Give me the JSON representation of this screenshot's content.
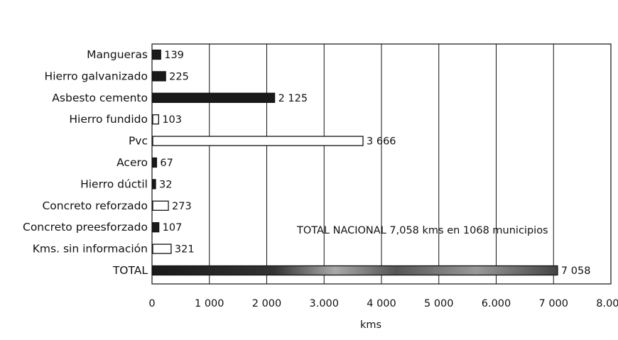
{
  "chart_data": {
    "type": "bar",
    "orientation": "horizontal",
    "categories": [
      "Mangueras",
      "Hierro galvanizado",
      "Asbesto cemento",
      "Hierro fundido",
      "Pvc",
      "Acero",
      "Hierro dúctil",
      "Concreto reforzado",
      "Concreto preesforzado",
      "Kms. sin información",
      "TOTAL"
    ],
    "values": [
      139,
      225,
      2125,
      103,
      3666,
      67,
      32,
      273,
      107,
      321,
      7058
    ],
    "value_labels": [
      "139",
      "225",
      "2 125",
      "103",
      "3 666",
      "67",
      "32",
      "273",
      "107",
      "321",
      "7 058"
    ],
    "bar_fills": [
      "dark",
      "dark",
      "dark",
      "light",
      "light",
      "dark",
      "dark",
      "light",
      "dark",
      "light",
      "mixed"
    ],
    "xlim": [
      0,
      8000
    ],
    "x_ticks": [
      0,
      1000,
      2000,
      3000,
      4000,
      5000,
      6000,
      7000,
      8000
    ],
    "x_tick_labels": [
      "0",
      "1 000",
      "2 000",
      "3.000",
      "4 000",
      "5 000",
      "6.000",
      "7 000",
      "8.000"
    ],
    "xlabel": "kms",
    "ylabel": "",
    "title": "",
    "grid": "vertical",
    "annotation": "TOTAL NACIONAL  7,058 kms  en 1068 municipios",
    "colors": {
      "dark": "#1a1a1a",
      "light": "#ffffff",
      "ink": "#111111"
    }
  }
}
